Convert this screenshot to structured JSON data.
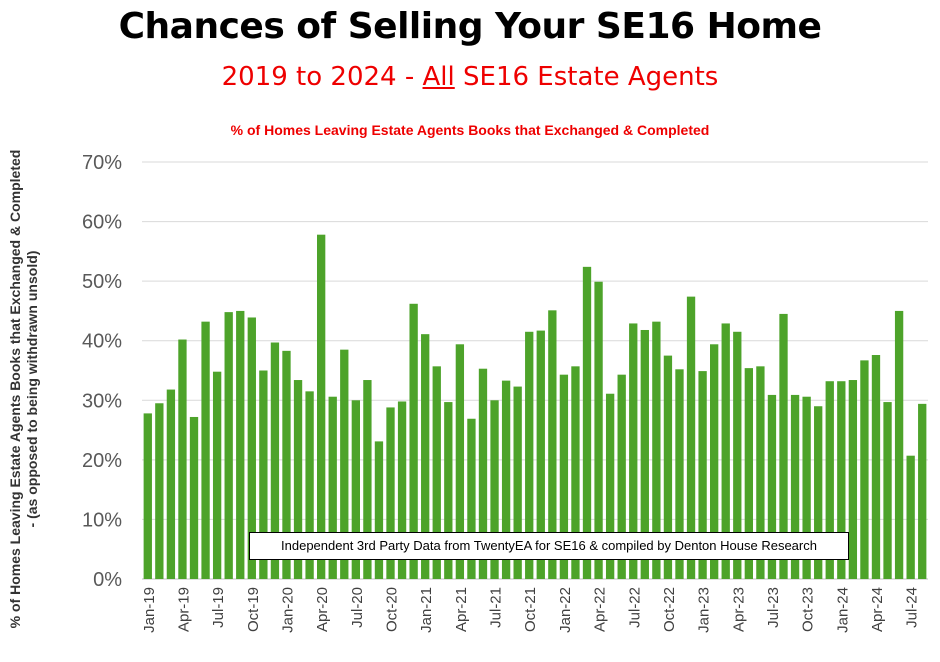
{
  "header": {
    "title": "Chances of Selling Your SE16 Home",
    "subtitle_before": "2019 to 2024 - ",
    "subtitle_underlined": "All",
    "subtitle_after": " SE16 Estate Agents"
  },
  "chart_data": {
    "type": "bar",
    "title": "% of Homes Leaving Estate Agents Books that Exchanged & Completed",
    "ylabel_line1": "% of Homes Leaving Estate Agents Books that Exchanged & Completed",
    "ylabel_line2": "- (as opposed to being withdrawn unsold)",
    "xlabel": "",
    "ylim": [
      0,
      70
    ],
    "yticks": [
      "0%",
      "10%",
      "20%",
      "30%",
      "40%",
      "50%",
      "60%",
      "70%"
    ],
    "grid": true,
    "bar_color": "#4da32a",
    "annotation": "Independent 3rd Party Data from TwentyEA for SE16 & compiled by Denton House Research",
    "categories": [
      "Jan-19",
      "Feb-19",
      "Mar-19",
      "Apr-19",
      "May-19",
      "Jun-19",
      "Jul-19",
      "Aug-19",
      "Sep-19",
      "Oct-19",
      "Nov-19",
      "Dec-19",
      "Jan-20",
      "Feb-20",
      "Mar-20",
      "Apr-20",
      "May-20",
      "Jun-20",
      "Jul-20",
      "Aug-20",
      "Sep-20",
      "Oct-20",
      "Nov-20",
      "Dec-20",
      "Jan-21",
      "Feb-21",
      "Mar-21",
      "Apr-21",
      "May-21",
      "Jun-21",
      "Jul-21",
      "Aug-21",
      "Sep-21",
      "Oct-21",
      "Nov-21",
      "Dec-21",
      "Jan-22",
      "Feb-22",
      "Mar-22",
      "Apr-22",
      "May-22",
      "Jun-22",
      "Jul-22",
      "Aug-22",
      "Sep-22",
      "Oct-22",
      "Nov-22",
      "Dec-22",
      "Jan-23",
      "Feb-23",
      "Mar-23",
      "Apr-23",
      "May-23",
      "Jun-23",
      "Jul-23",
      "Aug-23",
      "Sep-23",
      "Oct-23",
      "Nov-23",
      "Dec-23",
      "Jan-24",
      "Feb-24",
      "Mar-24",
      "Apr-24",
      "May-24",
      "Jun-24",
      "Jul-24",
      "Aug-24"
    ],
    "tick_labels": [
      "Jan-19",
      "",
      "",
      "Apr-19",
      "",
      "",
      "Jul-19",
      "",
      "",
      "Oct-19",
      "",
      "",
      "Jan-20",
      "",
      "",
      "Apr-20",
      "",
      "",
      "Jul-20",
      "",
      "",
      "Oct-20",
      "",
      "",
      "Jan-21",
      "",
      "",
      "Apr-21",
      "",
      "",
      "Jul-21",
      "",
      "",
      "Oct-21",
      "",
      "",
      "Jan-22",
      "",
      "",
      "Apr-22",
      "",
      "",
      "Jul-22",
      "",
      "",
      "Oct-22",
      "",
      "",
      "Jan-23",
      "",
      "",
      "Apr-23",
      "",
      "",
      "Jul-23",
      "",
      "",
      "Oct-23",
      "",
      "",
      "Jan-24",
      "",
      "",
      "Apr-24",
      "",
      "",
      "Jul-24",
      ""
    ],
    "values": [
      27.8,
      29.5,
      31.8,
      40.2,
      27.2,
      43.2,
      34.8,
      44.8,
      45.0,
      43.9,
      35.0,
      39.7,
      38.3,
      33.4,
      31.5,
      57.8,
      30.6,
      38.5,
      30.0,
      33.4,
      23.1,
      28.8,
      29.8,
      46.2,
      41.1,
      35.7,
      29.7,
      39.4,
      26.9,
      35.3,
      30.0,
      33.3,
      32.3,
      41.5,
      41.7,
      45.1,
      34.3,
      35.7,
      52.4,
      49.9,
      31.1,
      34.3,
      42.9,
      41.8,
      43.2,
      37.5,
      35.2,
      47.4,
      34.9,
      39.4,
      42.9,
      41.5,
      35.4,
      35.7,
      30.9,
      44.5,
      30.9,
      30.6,
      29.0,
      33.2,
      33.2,
      33.4,
      36.7,
      37.6,
      29.7,
      45.0,
      20.7,
      29.4
    ]
  }
}
